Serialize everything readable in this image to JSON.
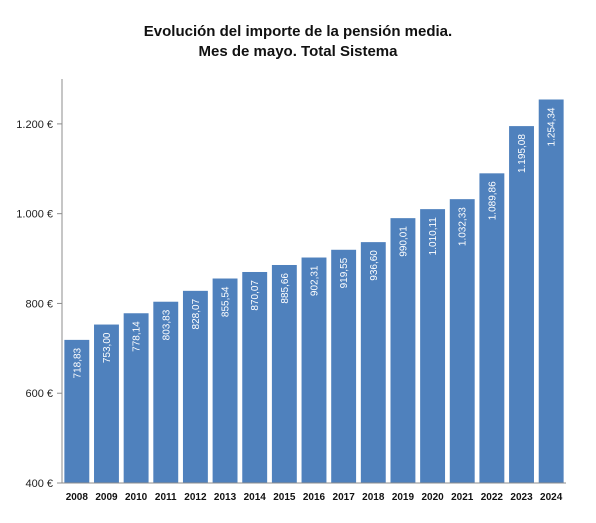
{
  "chart_data": {
    "type": "bar",
    "title": "Evolución del importe de la pensión media.",
    "subtitle": "Mes de mayo. Total Sistema",
    "categories": [
      "2008",
      "2009",
      "2010",
      "2011",
      "2012",
      "2013",
      "2014",
      "2015",
      "2016",
      "2017",
      "2018",
      "2019",
      "2020",
      "2021",
      "2022",
      "2023",
      "2024"
    ],
    "values": [
      718.83,
      753.0,
      778.14,
      803.83,
      828.07,
      855.54,
      870.07,
      885.66,
      902.31,
      919.55,
      936.6,
      990.01,
      1010.11,
      1032.33,
      1089.86,
      1195.08,
      1254.34
    ],
    "value_labels": [
      "718,83",
      "753,00",
      "778,14",
      "803,83",
      "828,07",
      "855,54",
      "870,07",
      "885,66",
      "902,31",
      "919,55",
      "936,60",
      "990,01",
      "1.010,11",
      "1.032,33",
      "1.089,86",
      "1.195,08",
      "1.254,34"
    ],
    "y_ticks": [
      400,
      600,
      800,
      1000,
      1200
    ],
    "y_tick_labels": [
      "400 €",
      "600 €",
      "800 €",
      "1.000 €",
      "1.200 €"
    ],
    "ylim": [
      400,
      1300
    ],
    "xlabel": "",
    "ylabel": "",
    "grid": false,
    "colors": {
      "bar": "#4f81bd",
      "axis": "#8c8c8c"
    }
  }
}
